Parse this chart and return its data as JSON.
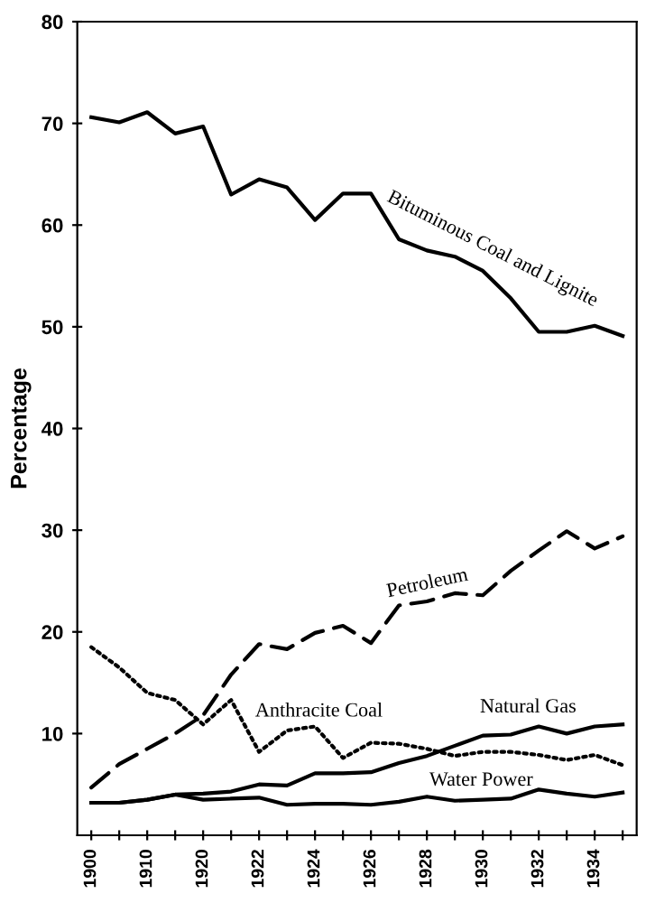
{
  "chart_data": {
    "type": "line",
    "ylabel": "Percentage",
    "categories": [
      "1900",
      null,
      "1910",
      null,
      "1920",
      null,
      "1922",
      null,
      "1924",
      null,
      "1926",
      null,
      "1928",
      null,
      "1930",
      null,
      "1932",
      null,
      "1934",
      null
    ],
    "series": [
      {
        "name": "Bituminous Coal and Lignite",
        "color": "#000000",
        "line_style": "solid",
        "values": [
          70.6,
          70.1,
          71.1,
          69.0,
          69.7,
          63.0,
          64.5,
          63.7,
          60.5,
          63.1,
          63.1,
          58.6,
          57.5,
          56.9,
          55.5,
          52.8,
          49.5,
          49.5,
          50.1,
          49.1
        ]
      },
      {
        "name": "Petroleum",
        "color": "#000000",
        "line_style": "dashed",
        "values": [
          4.7,
          7.0,
          8.5,
          10.0,
          11.8,
          15.8,
          18.8,
          18.3,
          19.9,
          20.6,
          18.9,
          22.6,
          23.0,
          23.8,
          23.6,
          26.0,
          28.0,
          29.9,
          28.2,
          29.4
        ]
      },
      {
        "name": "Anthracite Coal",
        "color": "#000000",
        "line_style": "dotted",
        "values": [
          18.5,
          16.5,
          14.0,
          13.3,
          10.9,
          13.3,
          8.2,
          10.3,
          10.7,
          7.6,
          9.1,
          9.0,
          8.5,
          7.8,
          8.2,
          8.2,
          7.9,
          7.4,
          7.9,
          6.9
        ]
      },
      {
        "name": "Natural Gas",
        "color": "#000000",
        "line_style": "solid",
        "values": [
          3.2,
          3.2,
          3.5,
          4.0,
          4.1,
          4.3,
          5.0,
          4.9,
          6.1,
          6.1,
          6.2,
          7.1,
          7.8,
          8.8,
          9.8,
          9.9,
          10.7,
          10.0,
          10.7,
          10.9
        ]
      },
      {
        "name": "Water Power",
        "color": "#000000",
        "line_style": "solid",
        "values": [
          3.2,
          3.2,
          3.5,
          4.0,
          3.5,
          3.6,
          3.7,
          3.0,
          3.1,
          3.1,
          3.0,
          3.3,
          3.8,
          3.4,
          3.5,
          3.6,
          4.5,
          4.1,
          3.8,
          4.2
        ]
      }
    ],
    "ylim": [
      0,
      80
    ],
    "yticks": [
      10,
      20,
      30,
      40,
      50,
      60,
      70,
      80
    ],
    "grid": false,
    "legend": false
  }
}
